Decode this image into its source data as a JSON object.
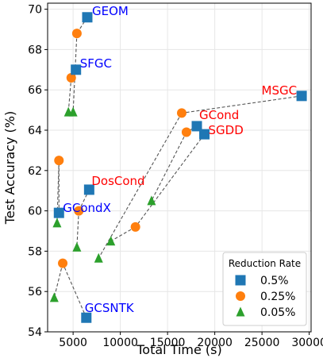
{
  "chart_data": {
    "type": "scatter",
    "xlabel": "Total Time (s)",
    "ylabel": "Test Accuracy (%)",
    "xlim": [
      2300,
      30200
    ],
    "ylim": [
      54,
      70.3
    ],
    "xticks": [
      "5000",
      "10000",
      "15000",
      "20000",
      "25000",
      "30000"
    ],
    "yticks": [
      "54",
      "56",
      "58",
      "60",
      "62",
      "64",
      "66",
      "68",
      "70"
    ],
    "grid": true,
    "legend": {
      "title": "Reduction Rate",
      "placement": "bottom-right",
      "entries": [
        {
          "label": "0.5%",
          "marker": "square",
          "color": "#1f77b4"
        },
        {
          "label": "0.25%",
          "marker": "circle",
          "color": "#ff7f0e"
        },
        {
          "label": "0.05%",
          "marker": "triangle",
          "color": "#2ca02c"
        }
      ]
    },
    "series": [
      {
        "name": "0.5%",
        "marker": "square",
        "color": "#1f77b4",
        "points": [
          {
            "method": "GEOM",
            "x": 6500,
            "y": 69.6
          },
          {
            "method": "SFGC",
            "x": 5300,
            "y": 67.0
          },
          {
            "method": "MSGC",
            "x": 29200,
            "y": 65.7
          },
          {
            "method": "GCond",
            "x": 18100,
            "y": 64.2
          },
          {
            "method": "SGDD",
            "x": 18900,
            "y": 63.8
          },
          {
            "method": "DosCond",
            "x": 6700,
            "y": 61.05
          },
          {
            "method": "GCondX",
            "x": 3500,
            "y": 59.9
          },
          {
            "method": "GCSNTK",
            "x": 6400,
            "y": 54.7
          }
        ]
      },
      {
        "name": "0.25%",
        "marker": "circle",
        "color": "#ff7f0e",
        "points": [
          {
            "method": "GEOM",
            "x": 5400,
            "y": 68.8
          },
          {
            "method": "SFGC",
            "x": 4800,
            "y": 66.6
          },
          {
            "method": "MSGC",
            "x": 16500,
            "y": 64.85
          },
          {
            "method": "GCond",
            "x": 17000,
            "y": 63.9
          },
          {
            "method": "SGDD",
            "x": 11600,
            "y": 59.2
          },
          {
            "method": "DosCond",
            "x": 5600,
            "y": 60.0
          },
          {
            "method": "GCondX",
            "x": 3500,
            "y": 62.5
          },
          {
            "method": "GCSNTK",
            "x": 3900,
            "y": 57.4
          }
        ]
      },
      {
        "name": "0.05%",
        "marker": "triangle",
        "color": "#2ca02c",
        "points": [
          {
            "method": "GEOM",
            "x": 5000,
            "y": 64.9
          },
          {
            "method": "SFGC",
            "x": 4500,
            "y": 64.9
          },
          {
            "method": "MSGC",
            "x": 7700,
            "y": 57.65
          },
          {
            "method": "GCond",
            "x": 13300,
            "y": 60.5
          },
          {
            "method": "SGDD",
            "x": 9000,
            "y": 58.5
          },
          {
            "method": "DosCond",
            "x": 5400,
            "y": 58.2
          },
          {
            "method": "GCondX",
            "x": 3300,
            "y": 59.4
          },
          {
            "method": "GCSNTK",
            "x": 3000,
            "y": 55.7
          }
        ]
      }
    ],
    "method_labels": [
      {
        "text": "GEOM",
        "color": "#0000ff"
      },
      {
        "text": "SFGC",
        "color": "#0000ff"
      },
      {
        "text": "MSGC",
        "color": "#ff0000"
      },
      {
        "text": "GCond",
        "color": "#ff0000"
      },
      {
        "text": "SGDD",
        "color": "#ff0000"
      },
      {
        "text": "DosCond",
        "color": "#ff0000"
      },
      {
        "text": "GCondX",
        "color": "#0000ff"
      },
      {
        "text": "GCSNTK",
        "color": "#0000ff"
      }
    ]
  }
}
